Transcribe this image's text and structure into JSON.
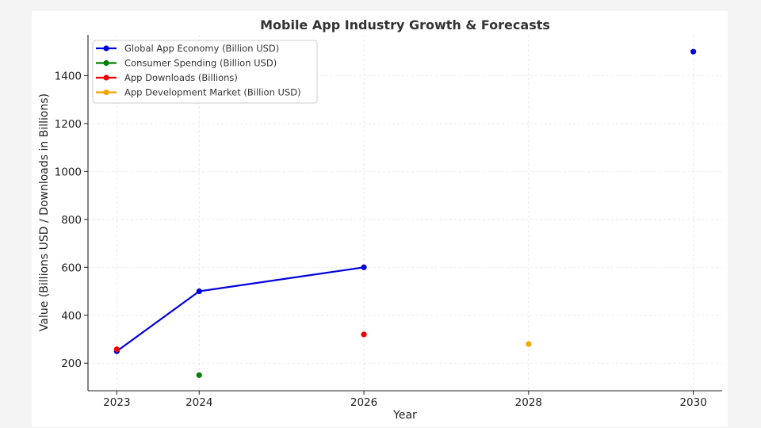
{
  "chart_data": {
    "type": "line",
    "title": "Mobile App Industry Growth & Forecasts",
    "xlabel": "Year",
    "ylabel": "Value (Billions USD / Downloads in Billions)",
    "xlim": [
      2022.65,
      2030.35
    ],
    "ylim": [
      85,
      1570
    ],
    "x_ticks": [
      2023,
      2024,
      2026,
      2028,
      2030
    ],
    "y_ticks": [
      200,
      400,
      600,
      800,
      1000,
      1200,
      1400
    ],
    "grid": true,
    "legend_position": "top-left",
    "series": [
      {
        "name": "Global App Economy (Billion USD)",
        "color": "#0000dd",
        "segments": [
          [
            {
              "x": 2023,
              "y": 250
            },
            {
              "x": 2024,
              "y": 500
            },
            {
              "x": 2026,
              "y": 600
            }
          ],
          [
            {
              "x": 2030,
              "y": 1500
            }
          ]
        ]
      },
      {
        "name": "Consumer Spending (Billion USD)",
        "color": "#008000",
        "segments": [
          [
            {
              "x": 2024,
              "y": 150
            }
          ]
        ]
      },
      {
        "name": "App Downloads (Billions)",
        "color": "#ee0000",
        "segments": [
          [
            {
              "x": 2023,
              "y": 258
            }
          ],
          [
            {
              "x": 2026,
              "y": 320
            }
          ]
        ]
      },
      {
        "name": "App Development Market (Billion USD)",
        "color": "#f5a400",
        "segments": [
          [
            {
              "x": 2028,
              "y": 280
            }
          ]
        ]
      }
    ]
  }
}
